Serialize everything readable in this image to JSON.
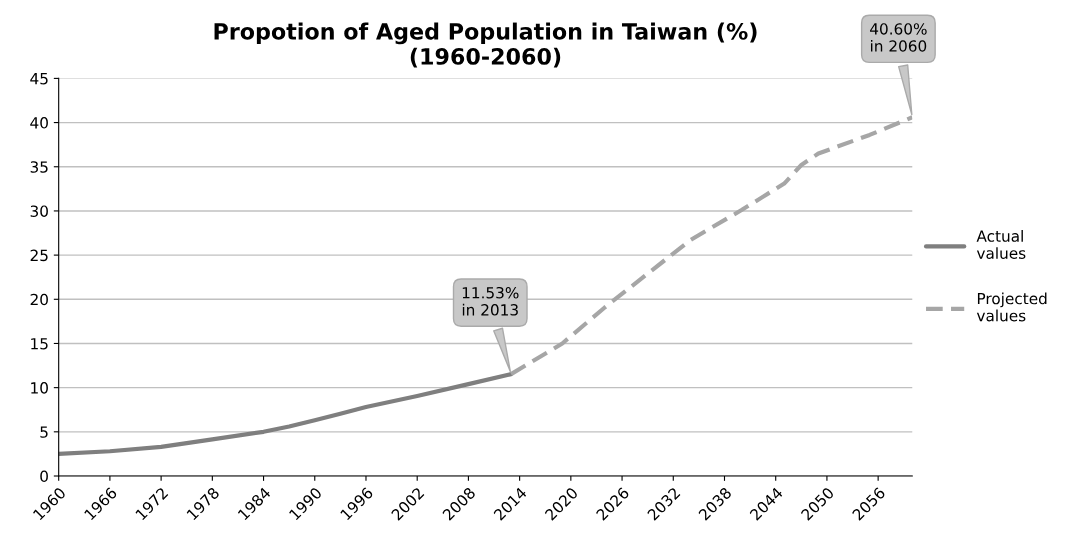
{
  "chart_data": {
    "type": "line",
    "title": "Propotion of Aged Population in Taiwan (%)\n(1960-2060)",
    "xlim": [
      1960,
      2060
    ],
    "xticks": [
      1960,
      1966,
      1972,
      1978,
      1984,
      1990,
      1996,
      2002,
      2008,
      2014,
      2020,
      2026,
      2032,
      2038,
      2044,
      2050,
      2056
    ],
    "ylim": [
      0,
      45
    ],
    "yticks": [
      0,
      5,
      10,
      15,
      20,
      25,
      30,
      35,
      40,
      45
    ],
    "grid": "y",
    "legend": "right",
    "series": [
      {
        "name": "Actual values",
        "color": "#7f7f7f",
        "line_style": "solid",
        "x": [
          1960,
          1966,
          1972,
          1978,
          1984,
          1987,
          1990,
          1993,
          1996,
          2002,
          2008,
          2013
        ],
        "values": [
          2.5,
          2.8,
          3.3,
          4.15,
          5.0,
          5.6,
          6.3,
          7.05,
          7.8,
          9.05,
          10.4,
          11.53
        ]
      },
      {
        "name": "Projected values",
        "color": "#a6a6a6",
        "line_style": "dashed",
        "x": [
          2013,
          2019,
          2024,
          2029,
          2034,
          2040,
          2045,
          2047,
          2049,
          2055,
          2060
        ],
        "values": [
          11.53,
          15.0,
          19.1,
          22.9,
          26.7,
          30.1,
          33.1,
          35.2,
          36.5,
          38.6,
          40.6
        ]
      }
    ],
    "annotations": [
      {
        "text": "11.53%\nin 2013",
        "x": 2013,
        "y": 11.53
      },
      {
        "text": "40.60%\nin 2060",
        "x": 2060,
        "y": 40.6
      }
    ]
  }
}
